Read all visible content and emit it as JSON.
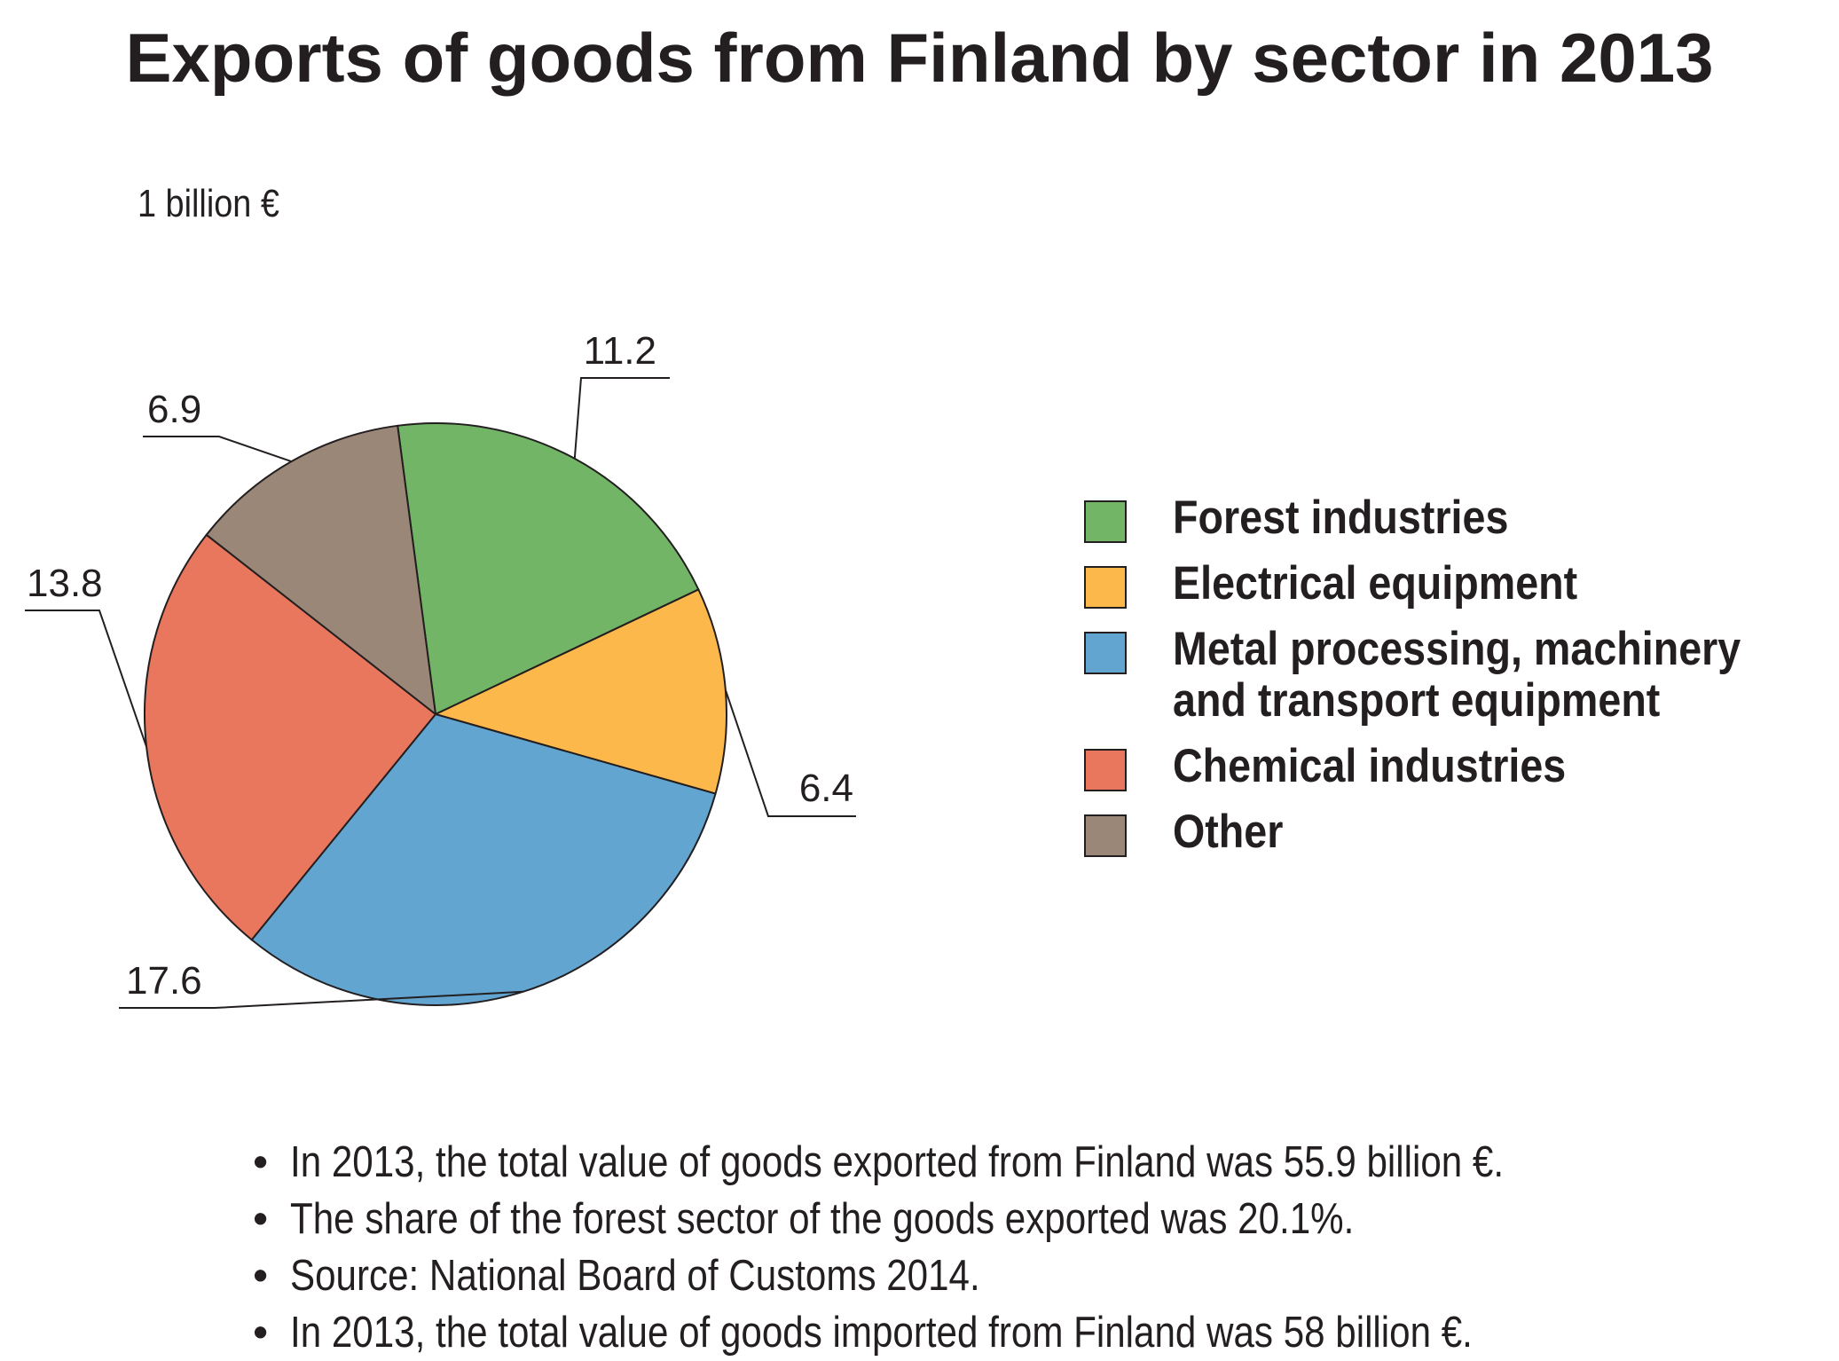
{
  "title": "Exports of goods from Finland by sector in 2013",
  "unit_label": "1 billion €",
  "chart_data": {
    "type": "pie",
    "title": "Exports of goods from Finland by sector in 2013",
    "unit": "1 billion €",
    "slices": [
      {
        "name": "Forest industries",
        "value": 11.2,
        "label": "11.2",
        "color": "#72b567"
      },
      {
        "name": "Electrical equipment",
        "value": 6.4,
        "label": "6.4",
        "color": "#fcb84b"
      },
      {
        "name": "Metal processing, machinery and transport equipment",
        "value": 17.6,
        "label": "17.6",
        "color": "#62a5d1"
      },
      {
        "name": "Chemical industries",
        "value": 13.8,
        "label": "13.8",
        "color": "#e8775e"
      },
      {
        "name": "Other",
        "value": 6.9,
        "label": "6.9",
        "color": "#9b8778"
      }
    ],
    "legend_position": "right"
  },
  "legend": [
    {
      "label_lines": [
        "Forest industries"
      ],
      "color": "#72b567"
    },
    {
      "label_lines": [
        "Electrical equipment"
      ],
      "color": "#fcb84b"
    },
    {
      "label_lines": [
        "Metal processing, machinery",
        "and transport equipment"
      ],
      "color": "#62a5d1"
    },
    {
      "label_lines": [
        "Chemical industries"
      ],
      "color": "#e8775e"
    },
    {
      "label_lines": [
        "Other"
      ],
      "color": "#9b8778"
    }
  ],
  "notes": [
    "In 2013, the total value of goods exported from Finland was 55.9 billion €.",
    "The share of the forest sector of the goods exported was 20.1%.",
    "Source: National Board of Customs 2014.",
    "In 2013, the total value of goods imported from Finland was 58 billion €."
  ]
}
